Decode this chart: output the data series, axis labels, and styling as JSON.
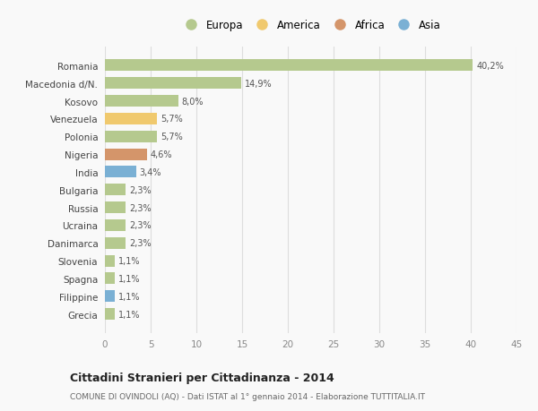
{
  "categories": [
    "Grecia",
    "Filippine",
    "Spagna",
    "Slovenia",
    "Danimarca",
    "Ucraina",
    "Russia",
    "Bulgaria",
    "India",
    "Nigeria",
    "Polonia",
    "Venezuela",
    "Kosovo",
    "Macedonia d/N.",
    "Romania"
  ],
  "values": [
    1.1,
    1.1,
    1.1,
    1.1,
    2.3,
    2.3,
    2.3,
    2.3,
    3.4,
    4.6,
    5.7,
    5.7,
    8.0,
    14.9,
    40.2
  ],
  "colors": [
    "#b5c98e",
    "#7ab0d4",
    "#b5c98e",
    "#b5c98e",
    "#b5c98e",
    "#b5c98e",
    "#b5c98e",
    "#b5c98e",
    "#7ab0d4",
    "#d4956a",
    "#b5c98e",
    "#f0c96e",
    "#b5c98e",
    "#b5c98e",
    "#b5c98e"
  ],
  "labels": [
    "1,1%",
    "1,1%",
    "1,1%",
    "1,1%",
    "2,3%",
    "2,3%",
    "2,3%",
    "2,3%",
    "3,4%",
    "4,6%",
    "5,7%",
    "5,7%",
    "8,0%",
    "14,9%",
    "40,2%"
  ],
  "legend_labels": [
    "Europa",
    "America",
    "Africa",
    "Asia"
  ],
  "legend_colors": [
    "#b5c98e",
    "#f0c96e",
    "#d4956a",
    "#7ab0d4"
  ],
  "title": "Cittadini Stranieri per Cittadinanza - 2014",
  "subtitle": "COMUNE DI OVINDOLI (AQ) - Dati ISTAT al 1° gennaio 2014 - Elaborazione TUTTITALIA.IT",
  "xlim": [
    0,
    45
  ],
  "xticks": [
    0,
    5,
    10,
    15,
    20,
    25,
    30,
    35,
    40,
    45
  ],
  "bg_color": "#f9f9f9",
  "grid_color": "#dddddd",
  "bar_height": 0.65
}
